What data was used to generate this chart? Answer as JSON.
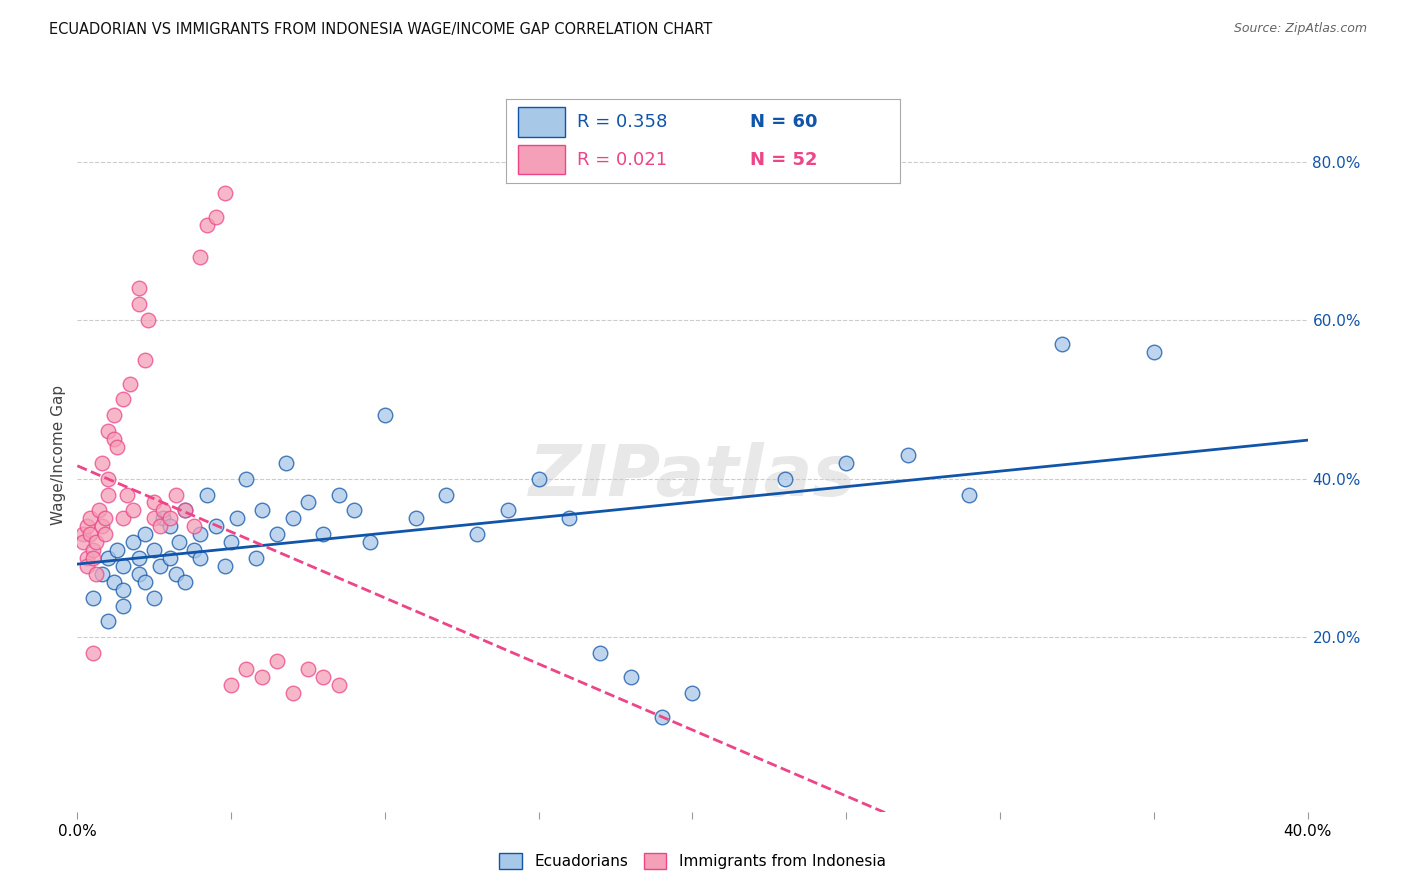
{
  "title": "ECUADORIAN VS IMMIGRANTS FROM INDONESIA WAGE/INCOME GAP CORRELATION CHART",
  "source": "Source: ZipAtlas.com",
  "ylabel": "Wage/Income Gap",
  "y_ticks": [
    0.2,
    0.4,
    0.6,
    0.8
  ],
  "y_tick_labels": [
    "20.0%",
    "40.0%",
    "60.0%",
    "80.0%"
  ],
  "x_range": [
    0.0,
    0.4
  ],
  "y_range": [
    -0.02,
    0.88
  ],
  "blue_R": "0.358",
  "blue_N": "60",
  "pink_R": "0.021",
  "pink_N": "52",
  "blue_color": "#a8c8e8",
  "pink_color": "#f4a0b8",
  "blue_line_color": "#1155aa",
  "pink_line_color": "#ee4488",
  "legend_label_blue": "Ecuadorians",
  "legend_label_pink": "Immigrants from Indonesia",
  "watermark": "ZIPatlas",
  "blue_points_x": [
    0.005,
    0.008,
    0.01,
    0.01,
    0.012,
    0.013,
    0.015,
    0.015,
    0.015,
    0.018,
    0.02,
    0.02,
    0.022,
    0.022,
    0.025,
    0.025,
    0.027,
    0.028,
    0.03,
    0.03,
    0.032,
    0.033,
    0.035,
    0.035,
    0.038,
    0.04,
    0.04,
    0.042,
    0.045,
    0.048,
    0.05,
    0.052,
    0.055,
    0.058,
    0.06,
    0.065,
    0.068,
    0.07,
    0.075,
    0.08,
    0.085,
    0.09,
    0.095,
    0.1,
    0.11,
    0.12,
    0.13,
    0.14,
    0.15,
    0.16,
    0.17,
    0.18,
    0.19,
    0.2,
    0.23,
    0.25,
    0.27,
    0.29,
    0.32,
    0.35
  ],
  "blue_points_y": [
    0.25,
    0.28,
    0.3,
    0.22,
    0.27,
    0.31,
    0.26,
    0.24,
    0.29,
    0.32,
    0.28,
    0.3,
    0.27,
    0.33,
    0.25,
    0.31,
    0.29,
    0.35,
    0.3,
    0.34,
    0.28,
    0.32,
    0.27,
    0.36,
    0.31,
    0.33,
    0.3,
    0.38,
    0.34,
    0.29,
    0.32,
    0.35,
    0.4,
    0.3,
    0.36,
    0.33,
    0.42,
    0.35,
    0.37,
    0.33,
    0.38,
    0.36,
    0.32,
    0.48,
    0.35,
    0.38,
    0.33,
    0.36,
    0.4,
    0.35,
    0.18,
    0.15,
    0.1,
    0.13,
    0.4,
    0.42,
    0.43,
    0.38,
    0.57,
    0.56
  ],
  "pink_points_x": [
    0.002,
    0.002,
    0.003,
    0.003,
    0.003,
    0.004,
    0.004,
    0.005,
    0.005,
    0.005,
    0.006,
    0.006,
    0.007,
    0.008,
    0.008,
    0.009,
    0.009,
    0.01,
    0.01,
    0.01,
    0.012,
    0.012,
    0.013,
    0.015,
    0.015,
    0.016,
    0.017,
    0.018,
    0.02,
    0.02,
    0.022,
    0.023,
    0.025,
    0.025,
    0.027,
    0.028,
    0.03,
    0.032,
    0.035,
    0.038,
    0.04,
    0.042,
    0.045,
    0.048,
    0.05,
    0.055,
    0.06,
    0.065,
    0.07,
    0.075,
    0.08,
    0.085
  ],
  "pink_points_y": [
    0.33,
    0.32,
    0.34,
    0.3,
    0.29,
    0.35,
    0.33,
    0.31,
    0.3,
    0.18,
    0.32,
    0.28,
    0.36,
    0.34,
    0.42,
    0.33,
    0.35,
    0.4,
    0.38,
    0.46,
    0.48,
    0.45,
    0.44,
    0.35,
    0.5,
    0.38,
    0.52,
    0.36,
    0.62,
    0.64,
    0.55,
    0.6,
    0.35,
    0.37,
    0.34,
    0.36,
    0.35,
    0.38,
    0.36,
    0.34,
    0.68,
    0.72,
    0.73,
    0.76,
    0.14,
    0.16,
    0.15,
    0.17,
    0.13,
    0.16,
    0.15,
    0.14
  ]
}
